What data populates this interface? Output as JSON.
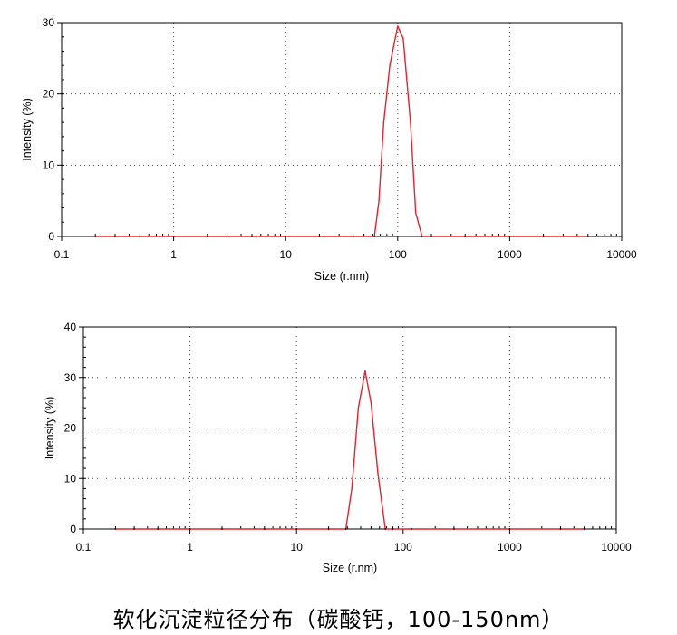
{
  "caption": "软化沉淀粒径分布（碳酸钙，100-150nm）",
  "colors": {
    "series": "#e8202a",
    "axis": "#000000",
    "grid": "#444444"
  },
  "chart_data": [
    {
      "type": "line",
      "xscale": "log",
      "xlim": [
        0.1,
        10000
      ],
      "ylim": [
        0,
        30
      ],
      "xticks": [
        0.1,
        1,
        10,
        100,
        1000,
        10000
      ],
      "xtick_labels": [
        "0.1",
        "1",
        "10",
        "100",
        "1000",
        "10000"
      ],
      "yticks": [
        0,
        10,
        20,
        30
      ],
      "ytick_labels": [
        "0",
        "10",
        "20",
        "30"
      ],
      "xlabel": "Size (r.nm)",
      "ylabel": "Intensity (%)",
      "grid": true,
      "series": [
        {
          "x": [
            0.2,
            0.3,
            0.5,
            1,
            2,
            5,
            10,
            20,
            40,
            62,
            68,
            75,
            85,
            100,
            112,
            130,
            145,
            165,
            200,
            400,
            1000,
            2000,
            5000
          ],
          "y": [
            0,
            0,
            0,
            0,
            0,
            0,
            0,
            0,
            0,
            0,
            5,
            16,
            24,
            29.5,
            27.8,
            16,
            3.3,
            0,
            0,
            0,
            0,
            0,
            0
          ]
        }
      ]
    },
    {
      "type": "line",
      "xscale": "log",
      "xlim": [
        0.1,
        10000
      ],
      "ylim": [
        0,
        40
      ],
      "xticks": [
        0.1,
        1,
        10,
        100,
        1000,
        10000
      ],
      "xtick_labels": [
        "0.1",
        "1",
        "10",
        "100",
        "1000",
        "10000"
      ],
      "yticks": [
        0,
        10,
        20,
        30,
        40
      ],
      "ytick_labels": [
        "0",
        "10",
        "20",
        "30",
        "40"
      ],
      "xlabel": "Size (r.nm)",
      "ylabel": "Intensity (%)",
      "grid": true,
      "series": [
        {
          "x": [
            0.2,
            0.3,
            0.5,
            1,
            2,
            5,
            10,
            20,
            29,
            33,
            38,
            44,
            50,
            58,
            68,
            80,
            120,
            300,
            1000,
            3000,
            5000
          ],
          "y": [
            0,
            0,
            0,
            0,
            0,
            0,
            0,
            0,
            0,
            8,
            24,
            31.3,
            25,
            11,
            0,
            0,
            0,
            0,
            0,
            0,
            0
          ]
        }
      ]
    }
  ]
}
